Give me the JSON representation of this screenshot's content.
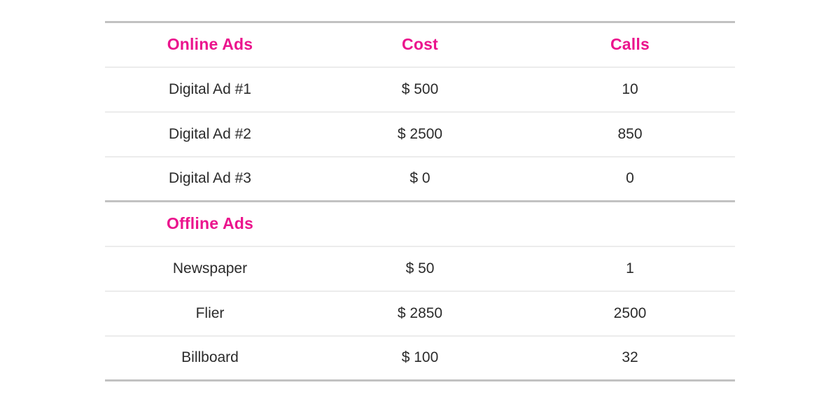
{
  "accent_color": "#eb148d",
  "border_thick_color": "#c2c2c2",
  "border_thin_color": "#ececec",
  "table": {
    "columns": [
      "Online Ads",
      "Cost",
      "Calls"
    ],
    "sections": [
      {
        "title": "Online Ads",
        "rows": [
          {
            "name": "Digital Ad #1",
            "cost": "$ 500",
            "calls": "10"
          },
          {
            "name": "Digital Ad #2",
            "cost": "$ 2500",
            "calls": "850"
          },
          {
            "name": "Digital Ad #3",
            "cost": "$ 0",
            "calls": "0"
          }
        ]
      },
      {
        "title": "Offline Ads",
        "rows": [
          {
            "name": "Newspaper",
            "cost": "$ 50",
            "calls": "1"
          },
          {
            "name": "Flier",
            "cost": "$ 2850",
            "calls": "2500"
          },
          {
            "name": "Billboard",
            "cost": "$ 100",
            "calls": "32"
          }
        ]
      }
    ]
  },
  "chart_data": {
    "type": "table",
    "title": "",
    "columns": [
      "Online Ads",
      "Cost",
      "Calls"
    ],
    "sections": [
      {
        "section": "Online Ads",
        "rows": [
          [
            "Digital Ad #1",
            500,
            10
          ],
          [
            "Digital Ad #2",
            2500,
            850
          ],
          [
            "Digital Ad #3",
            0,
            0
          ]
        ]
      },
      {
        "section": "Offline Ads",
        "rows": [
          [
            "Newspaper",
            50,
            1
          ],
          [
            "Flier",
            2850,
            2500
          ],
          [
            "Billboard",
            100,
            32
          ]
        ]
      }
    ]
  }
}
